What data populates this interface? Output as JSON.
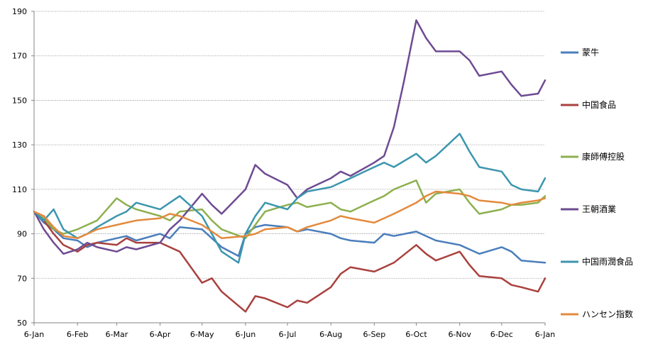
{
  "chart_data": {
    "type": "line",
    "ylim": [
      50,
      190
    ],
    "y_ticks": [
      "50",
      "70",
      "90",
      "110",
      "130",
      "150",
      "170",
      "190"
    ],
    "x_tick_labels": [
      "6-Jan",
      "6-Feb",
      "6-Mar",
      "6-Apr",
      "6-May",
      "6-Jun",
      "6-Jul",
      "6-Aug",
      "6-Sep",
      "6-Oct",
      "6-Nov",
      "6-Dec",
      "6-Jan"
    ],
    "x_ticks": [
      "2014-01-06",
      "2014-02-06",
      "2014-03-06",
      "2014-04-06",
      "2014-05-06",
      "2014-06-06",
      "2014-07-06",
      "2014-08-06",
      "2014-09-06",
      "2014-10-06",
      "2014-11-06",
      "2014-12-06",
      "2015-01-06"
    ],
    "grid": "horizontal",
    "legend_position": "right",
    "series": [
      {
        "name": "蒙牛",
        "color": "#4A7EBB",
        "points": [
          [
            "2014-01-06",
            100
          ],
          [
            "2014-01-13",
            95
          ],
          [
            "2014-01-20",
            92
          ],
          [
            "2014-01-27",
            88
          ],
          [
            "2014-02-06",
            87
          ],
          [
            "2014-02-13",
            84
          ],
          [
            "2014-02-20",
            86
          ],
          [
            "2014-03-06",
            88
          ],
          [
            "2014-03-13",
            89
          ],
          [
            "2014-03-20",
            87
          ],
          [
            "2014-04-06",
            90
          ],
          [
            "2014-04-13",
            88
          ],
          [
            "2014-04-20",
            93
          ],
          [
            "2014-05-06",
            92
          ],
          [
            "2014-05-13",
            88
          ],
          [
            "2014-05-20",
            84
          ],
          [
            "2014-06-01",
            80
          ],
          [
            "2014-06-06",
            90
          ],
          [
            "2014-06-13",
            93
          ],
          [
            "2014-06-20",
            94
          ],
          [
            "2014-07-06",
            93
          ],
          [
            "2014-07-13",
            91
          ],
          [
            "2014-07-20",
            92
          ],
          [
            "2014-08-06",
            90
          ],
          [
            "2014-08-13",
            88
          ],
          [
            "2014-08-20",
            87
          ],
          [
            "2014-09-06",
            86
          ],
          [
            "2014-09-13",
            90
          ],
          [
            "2014-09-20",
            89
          ],
          [
            "2014-10-06",
            91
          ],
          [
            "2014-10-13",
            89
          ],
          [
            "2014-10-20",
            87
          ],
          [
            "2014-11-06",
            85
          ],
          [
            "2014-11-13",
            83
          ],
          [
            "2014-11-20",
            81
          ],
          [
            "2014-12-06",
            84
          ],
          [
            "2014-12-13",
            82
          ],
          [
            "2014-12-20",
            78
          ],
          [
            "2015-01-06",
            77
          ]
        ]
      },
      {
        "name": "中国食品",
        "color": "#A9413E",
        "points": [
          [
            "2014-01-06",
            100
          ],
          [
            "2014-01-13",
            96
          ],
          [
            "2014-01-20",
            90
          ],
          [
            "2014-01-27",
            85
          ],
          [
            "2014-02-06",
            82
          ],
          [
            "2014-02-13",
            85
          ],
          [
            "2014-02-20",
            86
          ],
          [
            "2014-03-06",
            85
          ],
          [
            "2014-03-13",
            88
          ],
          [
            "2014-03-20",
            86
          ],
          [
            "2014-04-06",
            86
          ],
          [
            "2014-04-13",
            84
          ],
          [
            "2014-04-20",
            82
          ],
          [
            "2014-05-06",
            68
          ],
          [
            "2014-05-13",
            70
          ],
          [
            "2014-05-20",
            64
          ],
          [
            "2014-06-06",
            55
          ],
          [
            "2014-06-13",
            62
          ],
          [
            "2014-06-20",
            61
          ],
          [
            "2014-07-06",
            57
          ],
          [
            "2014-07-13",
            60
          ],
          [
            "2014-07-20",
            59
          ],
          [
            "2014-08-06",
            66
          ],
          [
            "2014-08-13",
            72
          ],
          [
            "2014-08-20",
            75
          ],
          [
            "2014-09-06",
            73
          ],
          [
            "2014-09-13",
            75
          ],
          [
            "2014-09-20",
            77
          ],
          [
            "2014-10-06",
            85
          ],
          [
            "2014-10-13",
            81
          ],
          [
            "2014-10-20",
            78
          ],
          [
            "2014-11-06",
            82
          ],
          [
            "2014-11-13",
            76
          ],
          [
            "2014-11-20",
            71
          ],
          [
            "2014-12-06",
            70
          ],
          [
            "2014-12-13",
            67
          ],
          [
            "2014-12-20",
            66
          ],
          [
            "2015-01-01",
            64
          ],
          [
            "2015-01-06",
            70
          ]
        ]
      },
      {
        "name": "康師傅控股",
        "color": "#8DB04F",
        "points": [
          [
            "2014-01-06",
            100
          ],
          [
            "2014-01-13",
            97
          ],
          [
            "2014-01-20",
            92
          ],
          [
            "2014-01-27",
            90
          ],
          [
            "2014-02-06",
            92
          ],
          [
            "2014-02-13",
            94
          ],
          [
            "2014-02-20",
            96
          ],
          [
            "2014-03-06",
            106
          ],
          [
            "2014-03-13",
            103
          ],
          [
            "2014-03-20",
            101
          ],
          [
            "2014-04-06",
            98
          ],
          [
            "2014-04-13",
            96
          ],
          [
            "2014-04-20",
            100
          ],
          [
            "2014-05-06",
            101
          ],
          [
            "2014-05-13",
            96
          ],
          [
            "2014-05-20",
            92
          ],
          [
            "2014-06-06",
            88
          ],
          [
            "2014-06-13",
            94
          ],
          [
            "2014-06-20",
            100
          ],
          [
            "2014-07-06",
            103
          ],
          [
            "2014-07-13",
            104
          ],
          [
            "2014-07-20",
            102
          ],
          [
            "2014-08-06",
            104
          ],
          [
            "2014-08-13",
            101
          ],
          [
            "2014-08-20",
            100
          ],
          [
            "2014-09-06",
            105
          ],
          [
            "2014-09-13",
            107
          ],
          [
            "2014-09-20",
            110
          ],
          [
            "2014-10-06",
            114
          ],
          [
            "2014-10-13",
            104
          ],
          [
            "2014-10-20",
            108
          ],
          [
            "2014-11-06",
            110
          ],
          [
            "2014-11-13",
            104
          ],
          [
            "2014-11-20",
            99
          ],
          [
            "2014-12-06",
            101
          ],
          [
            "2014-12-13",
            103
          ],
          [
            "2014-12-20",
            103
          ],
          [
            "2015-01-01",
            104
          ],
          [
            "2015-01-06",
            107
          ]
        ]
      },
      {
        "name": "王朝酒業",
        "color": "#6E4B92",
        "points": [
          [
            "2014-01-06",
            100
          ],
          [
            "2014-01-13",
            92
          ],
          [
            "2014-01-20",
            86
          ],
          [
            "2014-01-27",
            81
          ],
          [
            "2014-02-06",
            83
          ],
          [
            "2014-02-13",
            86
          ],
          [
            "2014-02-20",
            84
          ],
          [
            "2014-03-06",
            82
          ],
          [
            "2014-03-13",
            84
          ],
          [
            "2014-03-20",
            83
          ],
          [
            "2014-04-06",
            86
          ],
          [
            "2014-04-13",
            92
          ],
          [
            "2014-04-20",
            96
          ],
          [
            "2014-05-06",
            108
          ],
          [
            "2014-05-13",
            103
          ],
          [
            "2014-05-20",
            99
          ],
          [
            "2014-06-06",
            110
          ],
          [
            "2014-06-13",
            121
          ],
          [
            "2014-06-20",
            117
          ],
          [
            "2014-07-06",
            112
          ],
          [
            "2014-07-13",
            106
          ],
          [
            "2014-07-20",
            110
          ],
          [
            "2014-08-06",
            115
          ],
          [
            "2014-08-13",
            118
          ],
          [
            "2014-08-20",
            116
          ],
          [
            "2014-09-06",
            122
          ],
          [
            "2014-09-13",
            125
          ],
          [
            "2014-09-20",
            138
          ],
          [
            "2014-09-27",
            158
          ],
          [
            "2014-10-06",
            186
          ],
          [
            "2014-10-13",
            178
          ],
          [
            "2014-10-20",
            172
          ],
          [
            "2014-11-06",
            172
          ],
          [
            "2014-11-13",
            168
          ],
          [
            "2014-11-20",
            161
          ],
          [
            "2014-12-06",
            163
          ],
          [
            "2014-12-13",
            157
          ],
          [
            "2014-12-20",
            152
          ],
          [
            "2015-01-01",
            153
          ],
          [
            "2015-01-06",
            159
          ]
        ]
      },
      {
        "name": "中国雨潤食品",
        "color": "#3C96AE",
        "points": [
          [
            "2014-01-06",
            100
          ],
          [
            "2014-01-13",
            96
          ],
          [
            "2014-01-20",
            101
          ],
          [
            "2014-01-27",
            92
          ],
          [
            "2014-02-06",
            88
          ],
          [
            "2014-02-13",
            90
          ],
          [
            "2014-02-20",
            93
          ],
          [
            "2014-03-06",
            98
          ],
          [
            "2014-03-13",
            100
          ],
          [
            "2014-03-20",
            104
          ],
          [
            "2014-04-06",
            101
          ],
          [
            "2014-04-13",
            104
          ],
          [
            "2014-04-20",
            107
          ],
          [
            "2014-05-06",
            98
          ],
          [
            "2014-05-13",
            90
          ],
          [
            "2014-05-20",
            82
          ],
          [
            "2014-06-01",
            77
          ],
          [
            "2014-06-06",
            90
          ],
          [
            "2014-06-13",
            98
          ],
          [
            "2014-06-20",
            104
          ],
          [
            "2014-07-06",
            101
          ],
          [
            "2014-07-13",
            106
          ],
          [
            "2014-07-20",
            109
          ],
          [
            "2014-08-06",
            111
          ],
          [
            "2014-08-13",
            113
          ],
          [
            "2014-08-20",
            115
          ],
          [
            "2014-09-06",
            120
          ],
          [
            "2014-09-13",
            122
          ],
          [
            "2014-09-20",
            120
          ],
          [
            "2014-10-06",
            126
          ],
          [
            "2014-10-13",
            122
          ],
          [
            "2014-10-20",
            125
          ],
          [
            "2014-11-06",
            135
          ],
          [
            "2014-11-13",
            127
          ],
          [
            "2014-11-20",
            120
          ],
          [
            "2014-12-06",
            118
          ],
          [
            "2014-12-13",
            112
          ],
          [
            "2014-12-20",
            110
          ],
          [
            "2015-01-01",
            109
          ],
          [
            "2015-01-06",
            115
          ]
        ]
      },
      {
        "name": "ハンセン指数",
        "color": "#E38A3D",
        "points": [
          [
            "2014-01-06",
            100
          ],
          [
            "2014-01-13",
            98
          ],
          [
            "2014-01-20",
            93
          ],
          [
            "2014-01-27",
            89
          ],
          [
            "2014-02-06",
            88
          ],
          [
            "2014-02-13",
            90
          ],
          [
            "2014-02-20",
            92
          ],
          [
            "2014-03-06",
            94
          ],
          [
            "2014-03-13",
            95
          ],
          [
            "2014-03-20",
            96
          ],
          [
            "2014-04-06",
            97
          ],
          [
            "2014-04-13",
            99
          ],
          [
            "2014-04-20",
            98
          ],
          [
            "2014-05-06",
            94
          ],
          [
            "2014-05-13",
            91
          ],
          [
            "2014-05-20",
            88
          ],
          [
            "2014-06-06",
            89
          ],
          [
            "2014-06-13",
            90
          ],
          [
            "2014-06-20",
            92
          ],
          [
            "2014-07-06",
            93
          ],
          [
            "2014-07-13",
            91
          ],
          [
            "2014-07-20",
            93
          ],
          [
            "2014-08-06",
            96
          ],
          [
            "2014-08-13",
            98
          ],
          [
            "2014-08-20",
            97
          ],
          [
            "2014-09-06",
            95
          ],
          [
            "2014-09-13",
            97
          ],
          [
            "2014-09-20",
            99
          ],
          [
            "2014-10-06",
            104
          ],
          [
            "2014-10-13",
            107
          ],
          [
            "2014-10-20",
            109
          ],
          [
            "2014-11-06",
            108
          ],
          [
            "2014-11-13",
            107
          ],
          [
            "2014-11-20",
            105
          ],
          [
            "2014-12-06",
            104
          ],
          [
            "2014-12-13",
            103
          ],
          [
            "2014-12-20",
            104
          ],
          [
            "2015-01-01",
            105
          ],
          [
            "2015-01-06",
            106
          ]
        ]
      }
    ]
  }
}
